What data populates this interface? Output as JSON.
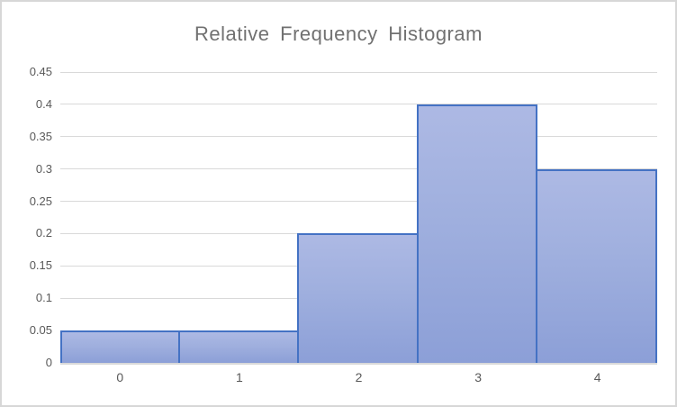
{
  "chart_data": {
    "type": "bar",
    "subtype": "histogram",
    "title": "Relative Frequency Histogram",
    "categories": [
      "0",
      "1",
      "2",
      "3",
      "4"
    ],
    "values": [
      0.05,
      0.05,
      0.2,
      0.4,
      0.3
    ],
    "xlabel": "",
    "ylabel": "",
    "ylim": [
      0,
      0.45
    ],
    "ytick_labels": [
      "0",
      "0.05",
      "0.1",
      "0.15",
      "0.2",
      "0.25",
      "0.3",
      "0.35",
      "0.4",
      "0.45"
    ],
    "grid": true,
    "legend": false,
    "gap_width_percent": 0,
    "colors": {
      "bar_fill_top": "#adb9e4",
      "bar_fill_bottom": "#8c9fd7",
      "bar_border": "#4472c4",
      "gridline": "#d9d9d9",
      "axis_line": "#d9d9d9",
      "tick_text": "#595959",
      "title_text": "#717171",
      "chart_border": "#d7d7d7",
      "background": "#ffffff"
    }
  }
}
